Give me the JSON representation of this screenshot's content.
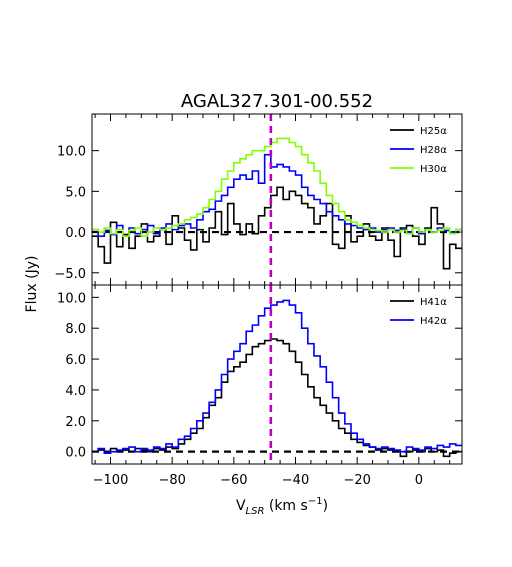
{
  "title": "AGAL327.301-00.552",
  "xlabel": "V",
  "xlabel_sub": "LSR",
  "xlabel_unit": " (km s",
  "xlabel_exp": "−1",
  "xlabel_close": ")",
  "ylabel": "Flux (Jy)",
  "vline_x": -48,
  "chart_data": [
    {
      "type": "line",
      "panel": "top",
      "xlim": [
        -106,
        14
      ],
      "ylim": [
        -6.5,
        14.5
      ],
      "xticks": [
        -100,
        -80,
        -60,
        -40,
        -20,
        0
      ],
      "yticks": [
        -5.0,
        0.0,
        5.0,
        10.0
      ],
      "ytick_labels": [
        "−5.0",
        "0.0",
        "5.0",
        "10.0"
      ],
      "legend_position": "top-right",
      "series": [
        {
          "name": "H25α",
          "color": "#000000",
          "x": [
            -106,
            -104,
            -102,
            -100,
            -98,
            -96,
            -94,
            -92,
            -90,
            -88,
            -86,
            -84,
            -82,
            -80,
            -78,
            -76,
            -74,
            -72,
            -70,
            -68,
            -66,
            -64,
            -62,
            -60,
            -58,
            -56,
            -54,
            -52,
            -50,
            -48,
            -46,
            -44,
            -42,
            -40,
            -38,
            -36,
            -34,
            -32,
            -30,
            -28,
            -26,
            -24,
            -22,
            -20,
            -18,
            -16,
            -14,
            -12,
            -10,
            -8,
            -6,
            -4,
            -2,
            0,
            2,
            4,
            6,
            8,
            10,
            12
          ],
          "y": [
            -0.5,
            -1.8,
            -3.8,
            1.2,
            -1.8,
            -0.3,
            -2.0,
            -0.5,
            1.0,
            -1.2,
            -0.5,
            0.3,
            -1.5,
            2.0,
            0.5,
            -1.0,
            -2.2,
            0.3,
            -1.2,
            0.5,
            2.5,
            -0.3,
            3.5,
            1.0,
            -0.3,
            1.0,
            -0.2,
            2.0,
            3.0,
            4.5,
            5.5,
            4.0,
            5.0,
            4.5,
            3.5,
            3.0,
            1.0,
            2.0,
            3.5,
            -1.5,
            -2.0,
            2.0,
            -1.2,
            -0.5,
            1.0,
            -0.5,
            -1.0,
            0.5,
            -1.0,
            -3.0,
            0.5,
            0.8,
            -0.5,
            -1.5,
            0.5,
            3.0,
            1.0,
            -4.5,
            -1.5,
            -2.0
          ]
        },
        {
          "name": "H28α",
          "color": "#0000ff",
          "x": [
            -106,
            -104,
            -102,
            -100,
            -98,
            -96,
            -94,
            -92,
            -90,
            -88,
            -86,
            -84,
            -82,
            -80,
            -78,
            -76,
            -74,
            -72,
            -70,
            -68,
            -66,
            -64,
            -62,
            -60,
            -58,
            -56,
            -54,
            -52,
            -50,
            -48,
            -46,
            -44,
            -42,
            -40,
            -38,
            -36,
            -34,
            -32,
            -30,
            -28,
            -26,
            -24,
            -22,
            -20,
            -18,
            -16,
            -14,
            -12,
            -10,
            -8,
            -6,
            -4,
            -2,
            0,
            2,
            4,
            6,
            8,
            10,
            12
          ],
          "y": [
            0.3,
            -0.5,
            0.2,
            -0.3,
            0.8,
            -0.5,
            0.5,
            -0.2,
            0.3,
            0.8,
            -0.2,
            0.5,
            1.0,
            0.3,
            0.8,
            1.0,
            0.5,
            1.5,
            2.5,
            2.8,
            3.8,
            4.5,
            5.5,
            6.5,
            7.0,
            6.5,
            7.5,
            6.0,
            9.5,
            8.0,
            8.3,
            8.0,
            7.5,
            7.0,
            5.5,
            4.5,
            4.0,
            3.5,
            2.5,
            2.0,
            1.5,
            1.0,
            0.8,
            0.5,
            0.3,
            0.5,
            0.0,
            0.3,
            0.5,
            0.2,
            0.3,
            0.0,
            0.5,
            -0.2,
            0.3,
            0.0,
            0.5,
            0.2,
            0.0,
            0.3
          ]
        },
        {
          "name": "H30α",
          "color": "#7fff00",
          "x": [
            -106,
            -104,
            -102,
            -100,
            -98,
            -96,
            -94,
            -92,
            -90,
            -88,
            -86,
            -84,
            -82,
            -80,
            -78,
            -76,
            -74,
            -72,
            -70,
            -68,
            -66,
            -64,
            -62,
            -60,
            -58,
            -56,
            -54,
            -52,
            -50,
            -48,
            -46,
            -44,
            -42,
            -40,
            -38,
            -36,
            -34,
            -32,
            -30,
            -28,
            -26,
            -24,
            -22,
            -20,
            -18,
            -16,
            -14,
            -12,
            -10,
            -8,
            -6,
            -4,
            -2,
            0,
            2,
            4,
            6,
            8,
            10,
            12
          ],
          "y": [
            0.3,
            0.0,
            0.5,
            -0.2,
            0.3,
            -0.5,
            0.2,
            0.5,
            -0.5,
            0.0,
            0.5,
            0.3,
            0.5,
            0.8,
            1.0,
            1.5,
            1.8,
            2.2,
            3.0,
            4.0,
            5.0,
            6.5,
            7.5,
            8.5,
            9.0,
            9.5,
            10.0,
            10.0,
            10.5,
            11.0,
            11.5,
            11.5,
            11.0,
            10.5,
            9.5,
            8.5,
            7.5,
            6.0,
            4.5,
            3.5,
            2.5,
            1.5,
            1.2,
            0.8,
            0.5,
            0.3,
            0.2,
            0.0,
            0.3,
            0.0,
            0.2,
            -0.2,
            0.5,
            0.0,
            0.3,
            0.0,
            0.2,
            0.5,
            -0.2,
            0.3
          ]
        }
      ]
    },
    {
      "type": "line",
      "panel": "bottom",
      "xlim": [
        -106,
        14
      ],
      "ylim": [
        -0.8,
        10.8
      ],
      "xticks": [
        -100,
        -80,
        -60,
        -40,
        -20,
        0
      ],
      "xtick_labels": [
        "−100",
        "−80",
        "−60",
        "−40",
        "−20",
        "0"
      ],
      "yticks": [
        0.0,
        2.0,
        4.0,
        6.0,
        8.0,
        10.0
      ],
      "ytick_labels": [
        "0.0",
        "2.0",
        "4.0",
        "6.0",
        "8.0",
        "10.0"
      ],
      "legend_position": "top-right",
      "series": [
        {
          "name": "H41α",
          "color": "#000000",
          "x": [
            -106,
            -104,
            -102,
            -100,
            -98,
            -96,
            -94,
            -92,
            -90,
            -88,
            -86,
            -84,
            -82,
            -80,
            -78,
            -76,
            -74,
            -72,
            -70,
            -68,
            -66,
            -64,
            -62,
            -60,
            -58,
            -56,
            -54,
            -52,
            -50,
            -48,
            -46,
            -44,
            -42,
            -40,
            -38,
            -36,
            -34,
            -32,
            -30,
            -28,
            -26,
            -24,
            -22,
            -20,
            -18,
            -16,
            -14,
            -12,
            -10,
            -8,
            -6,
            -4,
            -2,
            0,
            2,
            4,
            6,
            8,
            10,
            12
          ],
          "y": [
            0.0,
            0.1,
            -0.1,
            0.2,
            0.0,
            0.1,
            0.0,
            0.2,
            0.1,
            0.0,
            0.2,
            0.1,
            0.3,
            0.2,
            0.5,
            0.8,
            1.2,
            1.5,
            2.2,
            3.0,
            3.5,
            4.5,
            5.2,
            5.5,
            5.8,
            6.3,
            6.8,
            7.0,
            7.2,
            7.3,
            7.2,
            7.0,
            6.5,
            5.8,
            5.0,
            4.2,
            3.5,
            3.0,
            2.5,
            2.0,
            1.5,
            1.2,
            0.8,
            0.6,
            0.4,
            0.3,
            0.1,
            0.2,
            0.1,
            0.0,
            -0.3,
            0.0,
            0.1,
            0.0,
            0.2,
            0.0,
            0.1,
            -0.3,
            -0.1,
            0.0
          ]
        },
        {
          "name": "H42α",
          "color": "#0000ff",
          "x": [
            -106,
            -104,
            -102,
            -100,
            -98,
            -96,
            -94,
            -92,
            -90,
            -88,
            -86,
            -84,
            -82,
            -80,
            -78,
            -76,
            -74,
            -72,
            -70,
            -68,
            -66,
            -64,
            -62,
            -60,
            -58,
            -56,
            -54,
            -52,
            -50,
            -48,
            -46,
            -44,
            -42,
            -40,
            -38,
            -36,
            -34,
            -32,
            -30,
            -28,
            -26,
            -24,
            -22,
            -20,
            -18,
            -16,
            -14,
            -12,
            -10,
            -8,
            -6,
            -4,
            -2,
            0,
            2,
            4,
            6,
            8,
            10,
            12
          ],
          "y": [
            0.0,
            0.2,
            -0.1,
            0.0,
            0.1,
            0.2,
            0.3,
            0.0,
            0.2,
            0.1,
            0.3,
            0.2,
            0.5,
            0.3,
            0.8,
            1.0,
            1.5,
            2.0,
            2.5,
            3.2,
            4.0,
            5.0,
            6.0,
            6.5,
            7.0,
            7.8,
            8.2,
            8.8,
            9.3,
            9.5,
            9.7,
            9.8,
            9.5,
            9.0,
            8.0,
            7.0,
            6.2,
            5.5,
            4.5,
            3.5,
            2.5,
            1.8,
            1.2,
            0.8,
            0.5,
            0.3,
            0.2,
            0.3,
            0.2,
            0.1,
            0.0,
            0.3,
            0.2,
            0.1,
            0.3,
            0.2,
            0.4,
            0.3,
            0.5,
            0.4
          ]
        }
      ]
    }
  ]
}
